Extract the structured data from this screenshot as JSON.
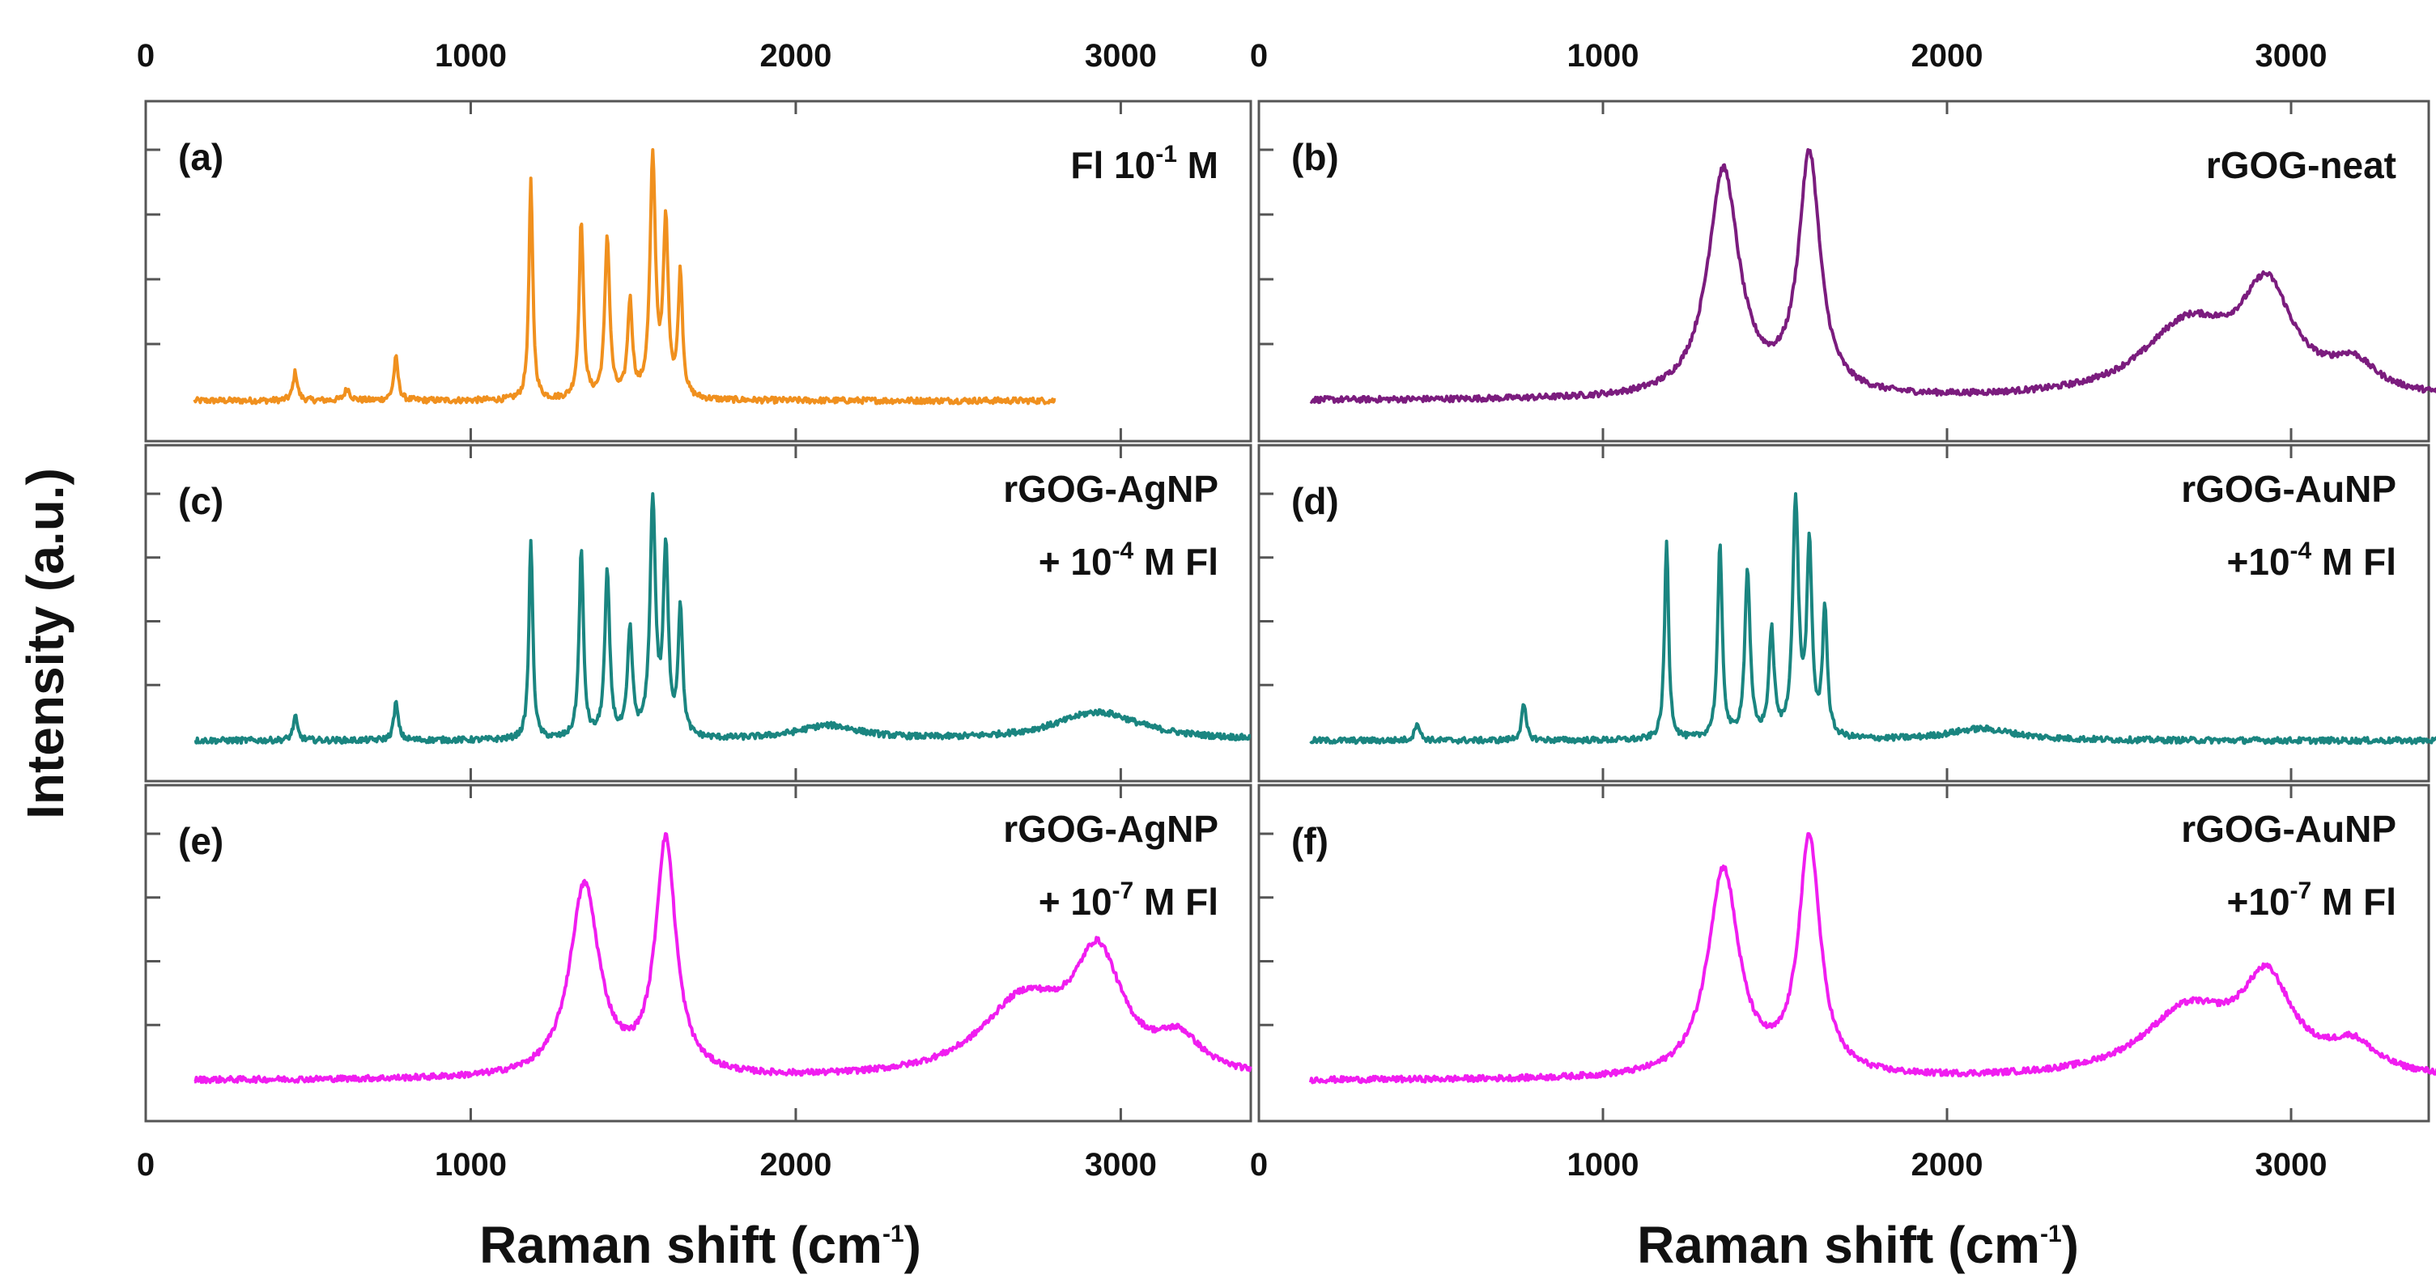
{
  "figure": {
    "ylabel": "Intensity (a.u.)",
    "xlabel": {
      "base": "Raman shift (cm",
      "sup": "-1",
      "end": ")"
    },
    "x_ticks": [
      0,
      1000,
      2000,
      3000
    ]
  },
  "colors": {
    "orange": "#F0901E",
    "purple": "#7B1C7E",
    "teal": "#1A8580",
    "magenta": "#F01DF0",
    "frame": "#555555"
  },
  "chart_data": [
    {
      "type": "line",
      "panel": "(a)",
      "legend": [
        "Fl 10",
        "-1",
        " M"
      ],
      "legend_position": "top-right",
      "color": "#F0901E",
      "xlim": [
        0,
        3400
      ],
      "x_range": [
        150,
        2800
      ],
      "bands": [
        {
          "c": 460,
          "h": 0.12,
          "w": 8
        },
        {
          "c": 620,
          "h": 0.05,
          "w": 10
        },
        {
          "c": 770,
          "h": 0.18,
          "w": 8
        },
        {
          "c": 1185,
          "h": 0.92,
          "w": 7
        },
        {
          "c": 1340,
          "h": 0.75,
          "w": 8
        },
        {
          "c": 1420,
          "h": 0.68,
          "w": 9
        },
        {
          "c": 1490,
          "h": 0.4,
          "w": 9
        },
        {
          "c": 1560,
          "h": 1.0,
          "w": 10
        },
        {
          "c": 1600,
          "h": 0.72,
          "w": 9
        },
        {
          "c": 1645,
          "h": 0.52,
          "w": 8
        }
      ]
    },
    {
      "type": "line",
      "panel": "(b)",
      "legend": [
        "rGOG-neat"
      ],
      "legend_position": "top-right",
      "color": "#7B1C7E",
      "xlim": [
        0,
        3400
      ],
      "x_range": [
        150,
        3500
      ],
      "bands": [
        {
          "c": 1350,
          "h": 0.95,
          "w": 55
        },
        {
          "c": 1600,
          "h": 1.0,
          "w": 38
        },
        {
          "c": 2700,
          "h": 0.3,
          "w": 160
        },
        {
          "c": 2930,
          "h": 0.42,
          "w": 90
        },
        {
          "c": 3180,
          "h": 0.12,
          "w": 80
        }
      ]
    },
    {
      "type": "line",
      "panel": "(c)",
      "legend": [
        "rGOG-AgNP",
        "+ 10",
        "-4",
        " M Fl"
      ],
      "legend_position": "top-right",
      "color": "#1A8580",
      "xlim": [
        0,
        3400
      ],
      "x_range": [
        150,
        3400
      ],
      "bands": [
        {
          "c": 460,
          "h": 0.1,
          "w": 8
        },
        {
          "c": 770,
          "h": 0.16,
          "w": 8
        },
        {
          "c": 1185,
          "h": 0.85,
          "w": 7
        },
        {
          "c": 1340,
          "h": 0.8,
          "w": 8
        },
        {
          "c": 1420,
          "h": 0.7,
          "w": 9
        },
        {
          "c": 1490,
          "h": 0.45,
          "w": 9
        },
        {
          "c": 1560,
          "h": 1.0,
          "w": 10
        },
        {
          "c": 1600,
          "h": 0.78,
          "w": 9
        },
        {
          "c": 1645,
          "h": 0.55,
          "w": 8
        },
        {
          "c": 2100,
          "h": 0.06,
          "w": 120
        },
        {
          "c": 2930,
          "h": 0.12,
          "w": 160
        }
      ]
    },
    {
      "type": "line",
      "panel": "(d)",
      "legend": [
        "rGOG-AuNP",
        "+10",
        "-4",
        " M Fl"
      ],
      "legend_position": "top-right",
      "color": "#1A8580",
      "xlim": [
        0,
        3400
      ],
      "x_range": [
        150,
        3500
      ],
      "bands": [
        {
          "c": 460,
          "h": 0.08,
          "w": 8
        },
        {
          "c": 770,
          "h": 0.15,
          "w": 8
        },
        {
          "c": 1185,
          "h": 0.85,
          "w": 7
        },
        {
          "c": 1340,
          "h": 0.82,
          "w": 8
        },
        {
          "c": 1420,
          "h": 0.72,
          "w": 9
        },
        {
          "c": 1490,
          "h": 0.45,
          "w": 9
        },
        {
          "c": 1560,
          "h": 1.0,
          "w": 10
        },
        {
          "c": 1600,
          "h": 0.8,
          "w": 9
        },
        {
          "c": 1645,
          "h": 0.55,
          "w": 8
        },
        {
          "c": 2100,
          "h": 0.05,
          "w": 120
        }
      ]
    },
    {
      "type": "line",
      "panel": "(e)",
      "legend": [
        "rGOG-AgNP",
        "+ 10",
        "-7",
        " M Fl"
      ],
      "legend_position": "top-right",
      "color": "#F01DF0",
      "xlim": [
        0,
        3400
      ],
      "x_range": [
        150,
        3400
      ],
      "bands": [
        {
          "c": 1350,
          "h": 0.82,
          "w": 55
        },
        {
          "c": 1600,
          "h": 1.0,
          "w": 38
        },
        {
          "c": 2700,
          "h": 0.32,
          "w": 160
        },
        {
          "c": 2930,
          "h": 0.48,
          "w": 90
        },
        {
          "c": 3180,
          "h": 0.14,
          "w": 80
        }
      ]
    },
    {
      "type": "line",
      "panel": "(f)",
      "legend": [
        "rGOG-AuNP",
        "+10",
        "-7",
        " M Fl"
      ],
      "legend_position": "top-right",
      "color": "#F01DF0",
      "xlim": [
        0,
        3400
      ],
      "x_range": [
        150,
        3500
      ],
      "bands": [
        {
          "c": 1350,
          "h": 0.88,
          "w": 55
        },
        {
          "c": 1600,
          "h": 1.0,
          "w": 38
        },
        {
          "c": 2700,
          "h": 0.28,
          "w": 160
        },
        {
          "c": 2930,
          "h": 0.38,
          "w": 90
        },
        {
          "c": 3180,
          "h": 0.12,
          "w": 80
        }
      ]
    }
  ]
}
